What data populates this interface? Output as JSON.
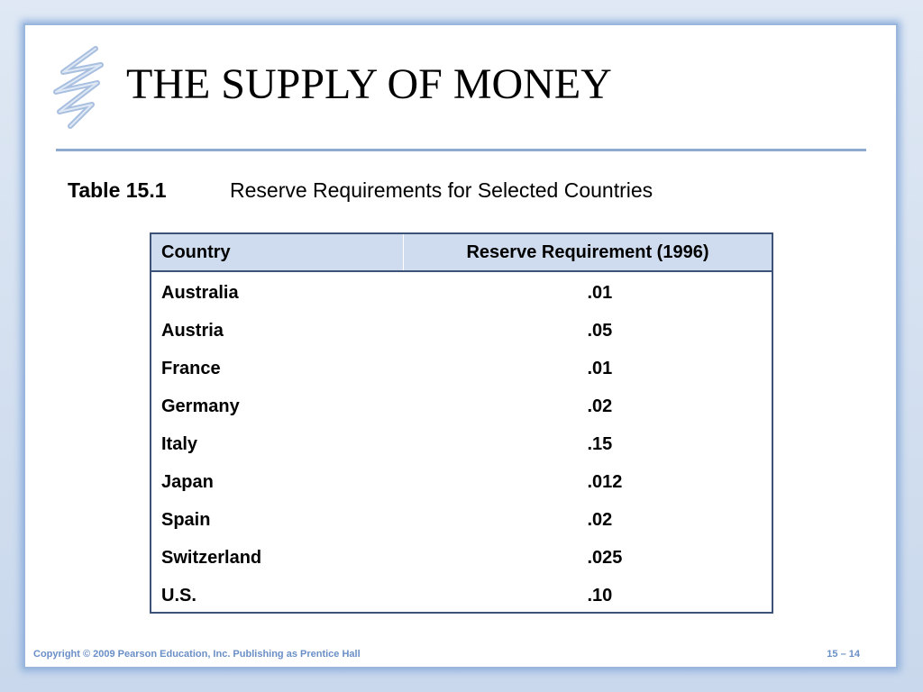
{
  "slide": {
    "title": "THE SUPPLY OF MONEY",
    "caption_label": "Table 15.1",
    "caption_text": "Reserve Requirements for Selected Countries"
  },
  "table": {
    "headers": [
      "Country",
      "Reserve Requirement (1996)"
    ],
    "rows": [
      {
        "country": "Australia",
        "value": ".01"
      },
      {
        "country": "Austria",
        "value": ".05"
      },
      {
        "country": "France",
        "value": ".01"
      },
      {
        "country": "Germany",
        "value": ".02"
      },
      {
        "country": "Italy",
        "value": ".15"
      },
      {
        "country": "Japan",
        "value": ".012"
      },
      {
        "country": "Spain",
        "value": ".02"
      },
      {
        "country": "Switzerland",
        "value": ".025"
      },
      {
        "country": "U.S.",
        "value": ".10"
      }
    ]
  },
  "footer": {
    "copyright": "Copyright © 2009 Pearson Education, Inc. Publishing as Prentice Hall",
    "page": "15 – 14"
  },
  "colors": {
    "header_fill": "#cfdcef",
    "table_border": "#3c5377",
    "rule": "#8fa9cf",
    "footer_text": "#6a8fc7"
  },
  "icons": {
    "logo": "scribble-swirl-icon"
  }
}
